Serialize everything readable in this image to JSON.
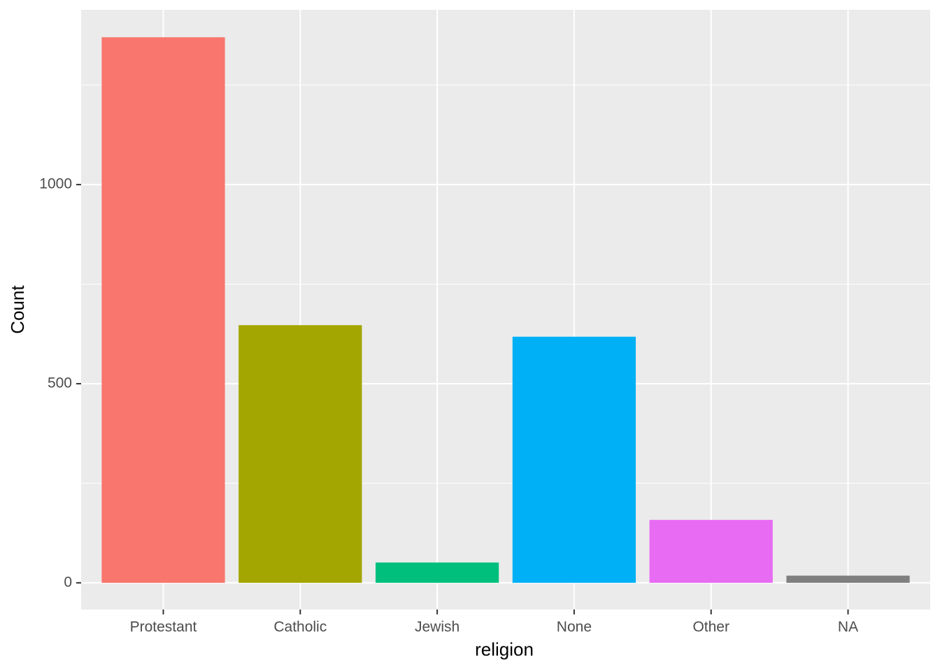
{
  "chart_data": {
    "type": "bar",
    "x_label": "religion",
    "y_label": "Count",
    "categories": [
      "Protestant",
      "Catholic",
      "Jewish",
      "None",
      "Other",
      "NA"
    ],
    "values": [
      1370,
      647,
      51,
      618,
      158,
      18
    ],
    "colors": [
      "#F8766D",
      "#A3A500",
      "#00BF7D",
      "#00B0F6",
      "#E76BF3",
      "#7F7F7F"
    ],
    "ylim": [
      -67,
      1439
    ],
    "yticks": [
      0,
      500,
      1000
    ],
    "minor_yticks": [
      250,
      750,
      1250
    ],
    "grid": true
  }
}
